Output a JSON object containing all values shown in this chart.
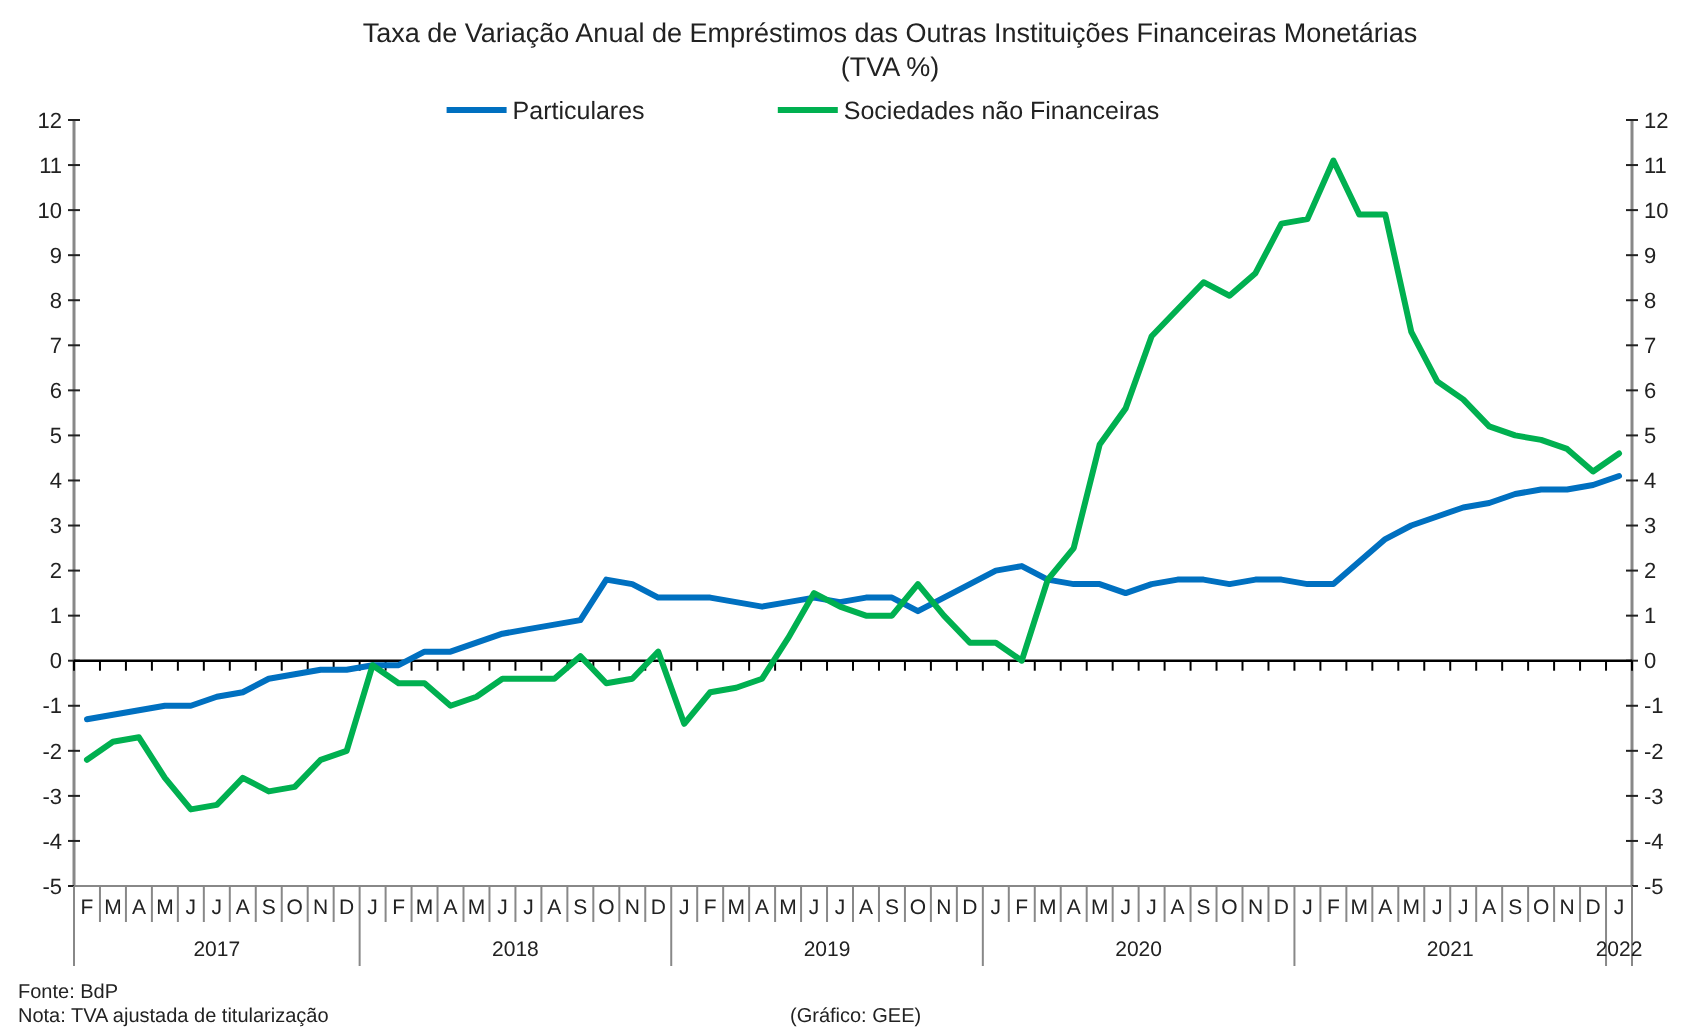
{
  "chart_data": {
    "type": "line",
    "title": "Taxa de Variação Anual de Empréstimos das Outras Instituições Financeiras Monetárias",
    "subtitle": "(TVA %)",
    "categories": [
      "F",
      "M",
      "A",
      "M",
      "J",
      "J",
      "A",
      "S",
      "O",
      "N",
      "D",
      "J",
      "F",
      "M",
      "A",
      "M",
      "J",
      "J",
      "A",
      "S",
      "O",
      "N",
      "D",
      "J",
      "F",
      "M",
      "A",
      "M",
      "J",
      "J",
      "A",
      "S",
      "O",
      "N",
      "D",
      "J",
      "F",
      "M",
      "A",
      "M",
      "J",
      "J",
      "A",
      "S",
      "O",
      "N",
      "D",
      "J",
      "F",
      "M",
      "A",
      "M",
      "J",
      "J",
      "A",
      "S",
      "O",
      "N",
      "D",
      "J"
    ],
    "series": [
      {
        "name": "Particulares",
        "color": "#0070c0",
        "values": [
          -1.3,
          -1.2,
          -1.1,
          -1.0,
          -1.0,
          -0.8,
          -0.7,
          -0.4,
          -0.3,
          -0.2,
          -0.2,
          -0.1,
          -0.1,
          0.2,
          0.2,
          0.4,
          0.6,
          0.7,
          0.8,
          0.9,
          1.8,
          1.7,
          1.4,
          1.4,
          1.4,
          1.3,
          1.2,
          1.3,
          1.4,
          1.3,
          1.4,
          1.4,
          1.1,
          1.4,
          1.7,
          2.0,
          2.1,
          1.8,
          1.7,
          1.7,
          1.5,
          1.7,
          1.8,
          1.8,
          1.7,
          1.8,
          1.8,
          1.7,
          1.7,
          2.2,
          2.7,
          3.0,
          3.2,
          3.4,
          3.5,
          3.7,
          3.8,
          3.8,
          3.9,
          4.1
        ]
      },
      {
        "name": "Sociedades não Financeiras",
        "color": "#00b050",
        "values": [
          -2.2,
          -1.8,
          -1.7,
          -2.6,
          -3.3,
          -3.2,
          -2.6,
          -2.9,
          -2.8,
          -2.2,
          -2.0,
          -0.1,
          -0.5,
          -0.5,
          -1.0,
          -0.8,
          -0.4,
          -0.4,
          -0.4,
          0.1,
          -0.5,
          -0.4,
          0.2,
          -1.4,
          -0.7,
          -0.6,
          -0.4,
          0.5,
          1.5,
          1.2,
          1.0,
          1.0,
          1.7,
          1.0,
          0.4,
          0.4,
          0.0,
          1.8,
          2.5,
          4.8,
          5.6,
          7.2,
          7.8,
          8.4,
          8.1,
          8.6,
          9.7,
          9.8,
          11.1,
          9.9,
          9.9,
          7.3,
          6.2,
          5.8,
          5.2,
          5.0,
          4.9,
          4.7,
          4.2,
          4.6
        ]
      }
    ],
    "ylim": [
      -5,
      12
    ],
    "yticks": [
      -5,
      -4,
      -3,
      -2,
      -1,
      0,
      1,
      2,
      3,
      4,
      5,
      6,
      7,
      8,
      9,
      10,
      11,
      12
    ],
    "y2lim": [
      -5,
      12
    ],
    "y2ticks": [
      -5,
      -4,
      -3,
      -2,
      -1,
      0,
      1,
      2,
      3,
      4,
      5,
      6,
      7,
      8,
      9,
      10,
      11,
      12
    ],
    "legend": "top",
    "annotations": [
      "2017",
      "2018",
      "2019",
      "2020",
      "2021",
      "2022",
      "Fonte: BdP",
      "Nota: TVA ajustada de titularização",
      "(Gráfico: GEE)"
    ]
  }
}
